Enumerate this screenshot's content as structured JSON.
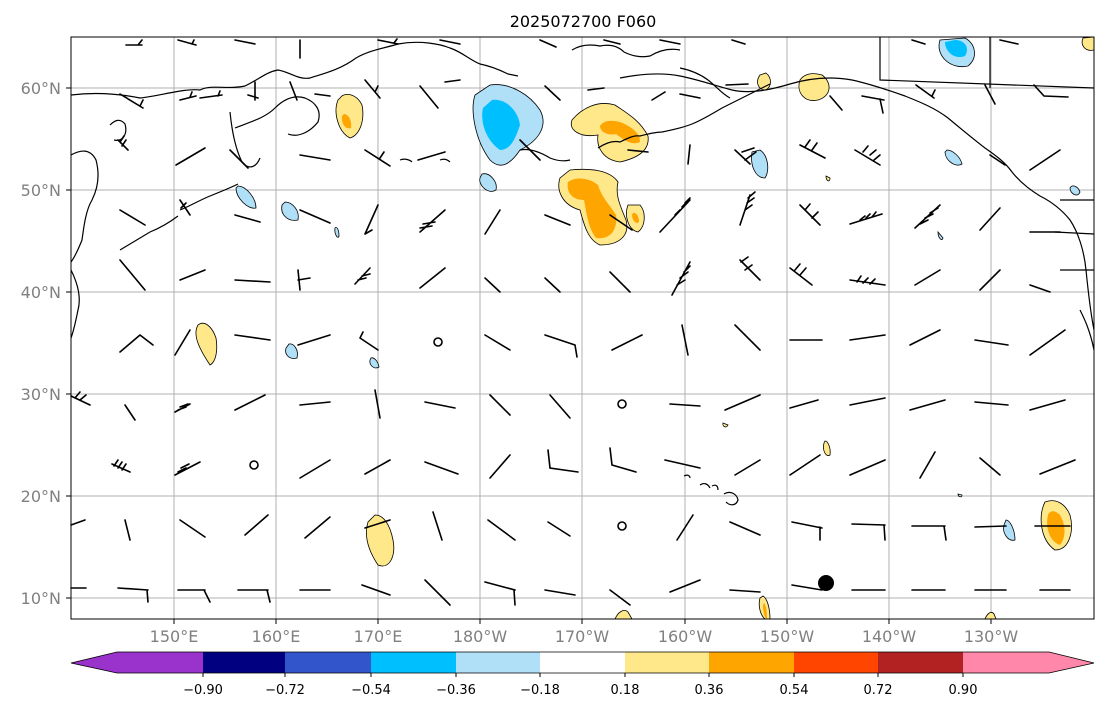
{
  "title": "2025072700 F060",
  "map": {
    "lat_labels": [
      "60°N",
      "50°N",
      "40°N",
      "30°N",
      "20°N",
      "10°N"
    ],
    "lon_labels": [
      "150°E",
      "160°E",
      "170°E",
      "180°W",
      "170°W",
      "160°W",
      "150°W",
      "140°W",
      "130°W"
    ],
    "marker": {
      "label": "black-dot"
    }
  },
  "colorbar": {
    "tick_labels": [
      "−0.90",
      "−0.72",
      "−0.54",
      "−0.36",
      "−0.18",
      "0.18",
      "0.36",
      "0.54",
      "0.72",
      "0.90"
    ],
    "colors": [
      "#9933cc",
      "#000080",
      "#3355cc",
      "#00bfff",
      "#b0e0f8",
      "#ffffff",
      "#ffe88a",
      "#ffa500",
      "#ff4500",
      "#b22222",
      "#ff88aa"
    ]
  },
  "chart_data": {
    "type": "map",
    "title": "2025072700 F060",
    "xlim": [
      "140°E",
      "120°W"
    ],
    "ylim": [
      "8°N",
      "65°N"
    ],
    "grid": true,
    "colorbar_levels": [
      -0.9,
      -0.72,
      -0.54,
      -0.36,
      -0.18,
      0.18,
      0.36,
      0.54,
      0.72,
      0.9
    ]
  }
}
